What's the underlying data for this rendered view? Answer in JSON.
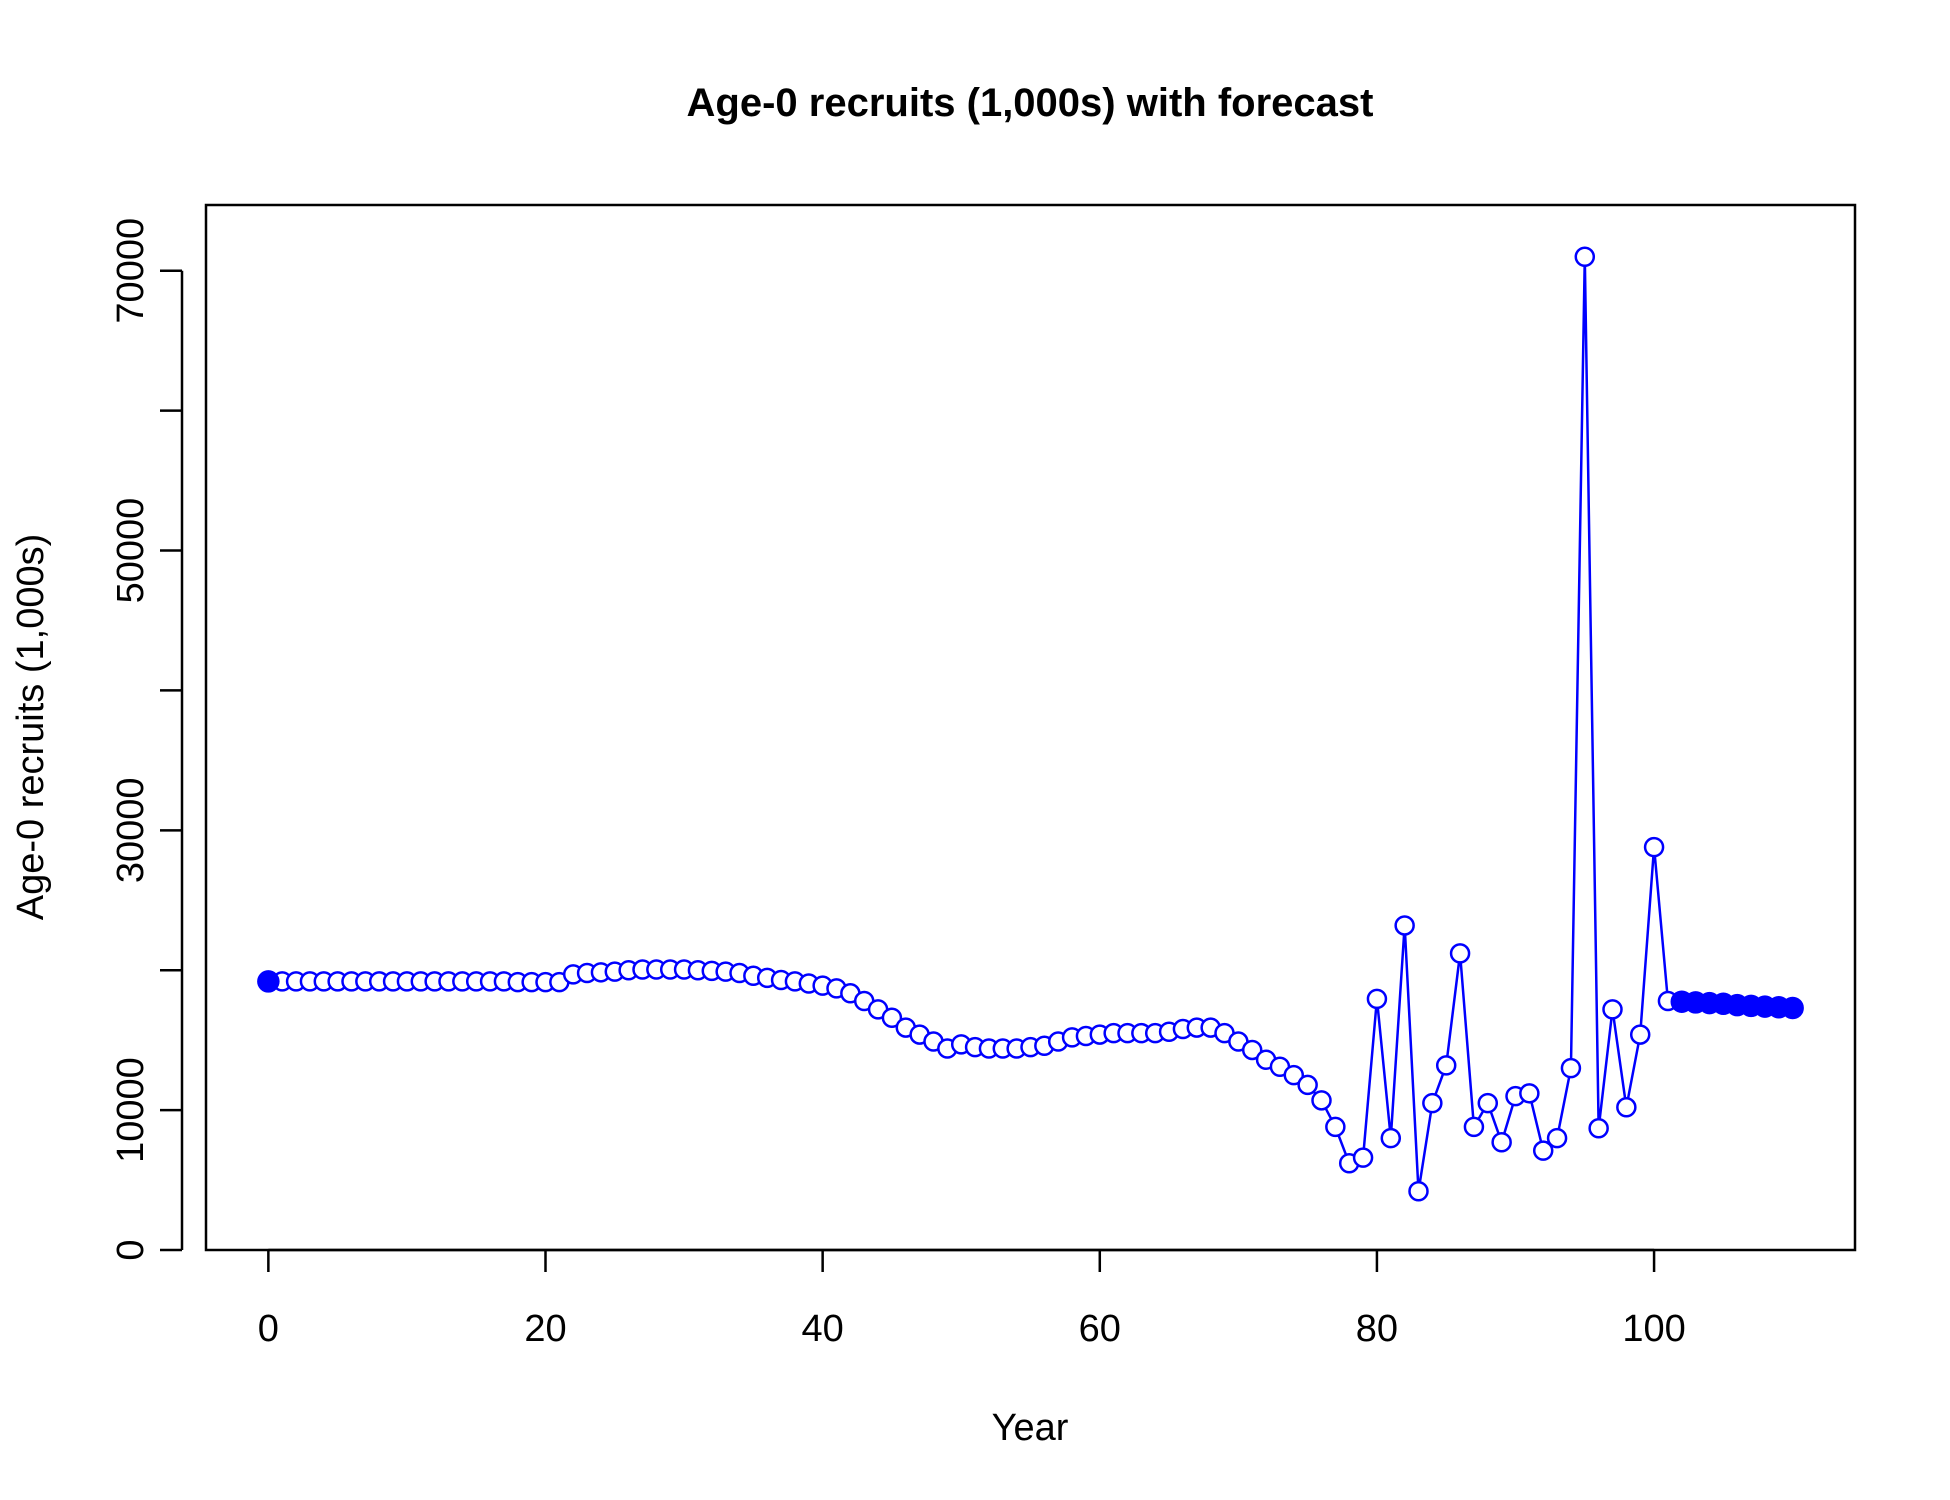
{
  "chart_data": {
    "type": "line",
    "title": "Age-0 recruits (1,000s) with forecast",
    "xlabel": "Year",
    "ylabel": "Age-0 recruits (1,000s)",
    "xlim": [
      -4.5,
      114.5
    ],
    "ylim": [
      0,
      74700
    ],
    "xticks": [
      0,
      20,
      40,
      60,
      80,
      100
    ],
    "yticks": [
      0,
      10000,
      20000,
      30000,
      40000,
      50000,
      60000,
      70000
    ],
    "ytick_labels": [
      "0",
      "10000",
      "",
      "30000",
      "",
      "50000",
      "",
      "70000"
    ],
    "grid": false,
    "legend": "none",
    "colors": {
      "series": "#0000ff",
      "axes": "#000000"
    },
    "series": [
      {
        "marker": "open-circle",
        "x": [
          0,
          1,
          2,
          3,
          4,
          5,
          6,
          7,
          8,
          9,
          10,
          11,
          12,
          13,
          14,
          15,
          16,
          17,
          18,
          19,
          20,
          21,
          22,
          23,
          24,
          25,
          26,
          27,
          28,
          29,
          30,
          31,
          32,
          33,
          34,
          35,
          36,
          37,
          38,
          39,
          40,
          41,
          42,
          43,
          44,
          45,
          46,
          47,
          48,
          49,
          50,
          51,
          52,
          53,
          54,
          55,
          56,
          57,
          58,
          59,
          60,
          61,
          62,
          63,
          64,
          65,
          66,
          67,
          68,
          69,
          70,
          71,
          72,
          73,
          74,
          75,
          76,
          77,
          78,
          79,
          80,
          81,
          82,
          83,
          84,
          85,
          86,
          87,
          88,
          89,
          90,
          91,
          92,
          93,
          94,
          95,
          96,
          97,
          98,
          99,
          100,
          101
        ],
        "values": [
          19200,
          19200,
          19200,
          19200,
          19200,
          19200,
          19200,
          19200,
          19200,
          19200,
          19200,
          19200,
          19200,
          19200,
          19200,
          19200,
          19200,
          19200,
          19150,
          19150,
          19150,
          19150,
          19700,
          19800,
          19850,
          19900,
          20000,
          20050,
          20050,
          20050,
          20050,
          20000,
          19950,
          19900,
          19800,
          19600,
          19450,
          19300,
          19200,
          19050,
          18900,
          18700,
          18350,
          17800,
          17200,
          16600,
          15900,
          15400,
          14900,
          14400,
          14700,
          14500,
          14400,
          14400,
          14400,
          14500,
          14600,
          14900,
          15200,
          15300,
          15400,
          15500,
          15500,
          15500,
          15500,
          15600,
          15800,
          15900,
          15900,
          15500,
          14900,
          14300,
          13600,
          13100,
          12500,
          11800,
          10700,
          8800,
          6200,
          6600,
          17950,
          8000,
          23200,
          4200,
          10500,
          13200,
          21200,
          8800,
          10500,
          7700,
          11000,
          11200,
          7100,
          8000,
          13000,
          71000,
          8700,
          17200,
          10200,
          15400,
          28800,
          17800
        ]
      },
      {
        "marker": "filled-circle",
        "x": [
          0,
          102,
          103,
          104,
          105,
          106,
          107,
          108,
          109,
          110
        ],
        "values": [
          19200,
          17750,
          17700,
          17650,
          17600,
          17500,
          17450,
          17400,
          17350,
          17300
        ]
      }
    ]
  }
}
